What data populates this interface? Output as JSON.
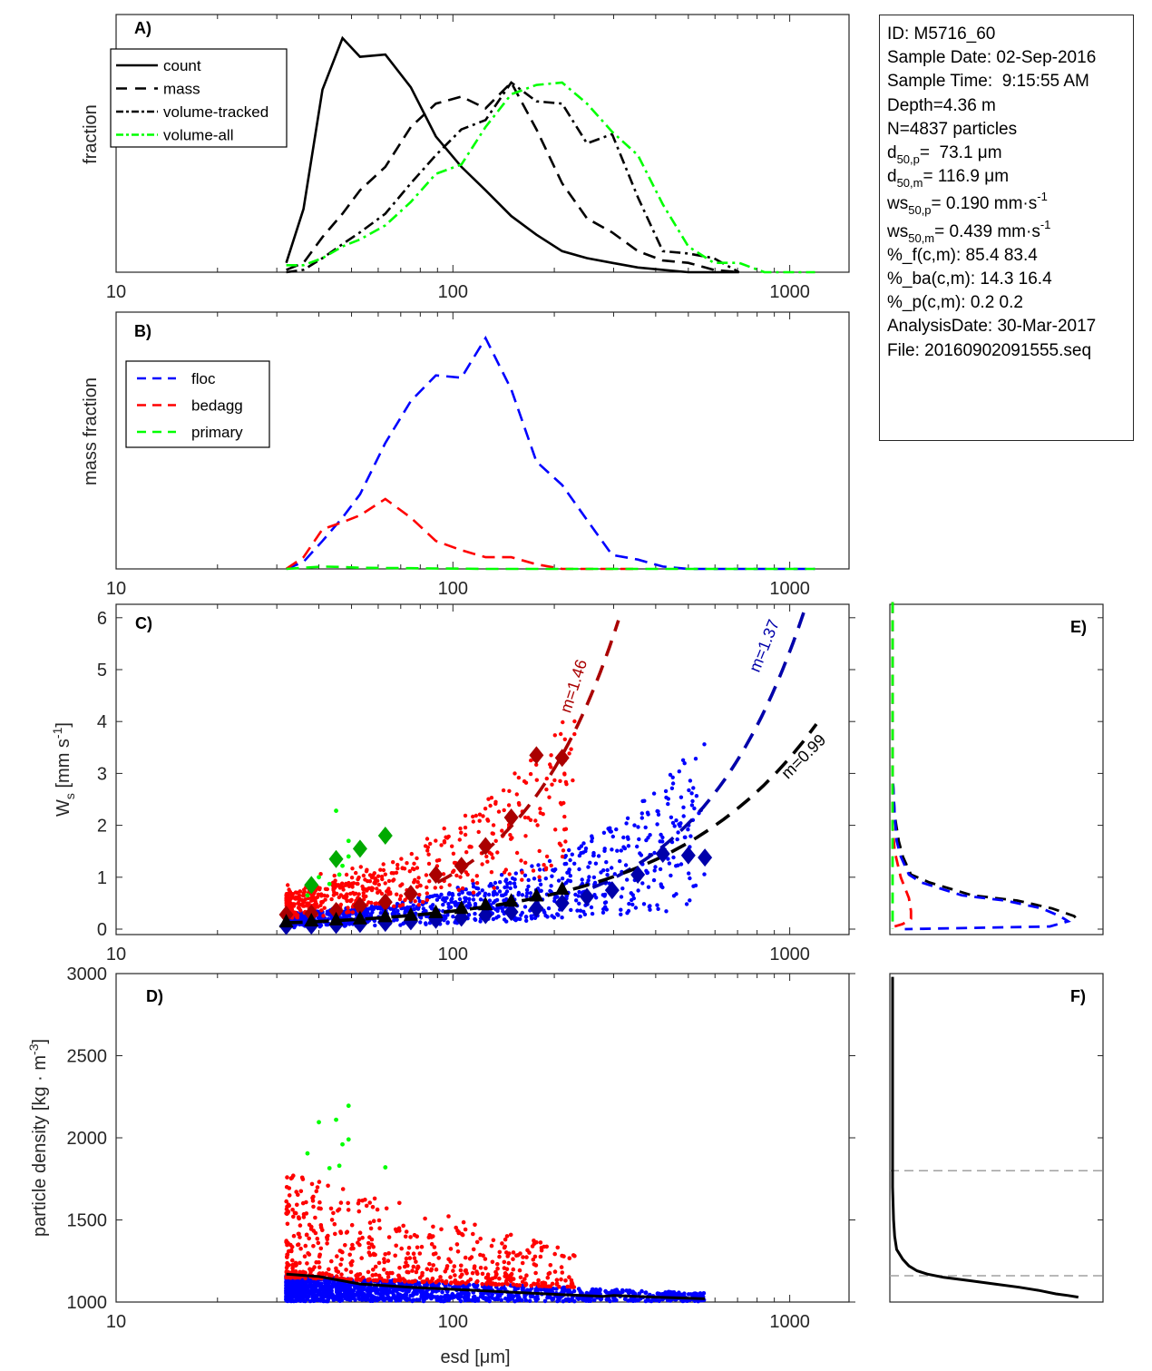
{
  "figure": {
    "info_box": {
      "lines": [
        {
          "text": "ID: M5716_60"
        },
        {
          "text": "Sample Date: 02-Sep-2016"
        },
        {
          "text": "Sample Time:  9:15:55 AM"
        },
        {
          "text": "Depth=4.36 m"
        },
        {
          "text": "N=4837 particles"
        },
        {
          "pre": "d",
          "sub": "50,p",
          "post": "=  73.1 μm"
        },
        {
          "pre": "d",
          "sub": "50,m",
          "post": "= 116.9 μm"
        },
        {
          "pre": "ws",
          "sub": "50,p",
          "post": "= 0.190 mm·s",
          "sup": "-1"
        },
        {
          "pre": "ws",
          "sub": "50,m",
          "post": "= 0.439 mm·s",
          "sup": "-1"
        },
        {
          "text": "%_f(c,m): 85.4 83.4"
        },
        {
          "text": "%_ba(c,m): 14.3 16.4"
        },
        {
          "text": "%_p(c,m): 0.2 0.2"
        },
        {
          "text": "AnalysisDate: 30-Mar-2017"
        },
        {
          "text": "File: 20160902091555.seq"
        }
      ]
    },
    "colors": {
      "black": "#000000",
      "green": "#00ff00",
      "dark_green": "#00aa00",
      "blue": "#0000ff",
      "dark_blue": "#0000aa",
      "red": "#ff0000",
      "dark_red": "#aa0000",
      "gray": "#a0a0a0",
      "axis": "#262626"
    }
  },
  "chart_data": [
    {
      "id": "A",
      "panel_label": "A)",
      "type": "line",
      "xscale": "log",
      "xlim": [
        10,
        1500
      ],
      "xticks": [
        10,
        100,
        1000
      ],
      "xtick_labels": [
        "10",
        "100",
        "1000"
      ],
      "ylabel": "fraction",
      "ylim": [
        0,
        1.0
      ],
      "yticks": [],
      "legend": {
        "placement": "top-left",
        "entries": [
          "count",
          "mass",
          "volume-tracked",
          "volume-all"
        ]
      },
      "series": [
        {
          "name": "count",
          "style": "solid",
          "color": "#000000",
          "x": [
            32,
            36,
            41,
            47,
            53,
            63,
            75,
            89,
            106,
            125,
            149,
            177,
            211,
            250,
            297,
            354,
            420,
            500,
            595,
            707
          ],
          "y": [
            0.04,
            0.27,
            0.78,
            1.0,
            0.92,
            0.93,
            0.79,
            0.58,
            0.45,
            0.35,
            0.24,
            0.16,
            0.09,
            0.06,
            0.04,
            0.02,
            0.01,
            0.0,
            0.0,
            0.0
          ]
        },
        {
          "name": "mass",
          "style": "dashed",
          "color": "#000000",
          "x": [
            32,
            36,
            41,
            47,
            53,
            63,
            75,
            89,
            106,
            125,
            149,
            177,
            211,
            250,
            297,
            354,
            420,
            500,
            595,
            707
          ],
          "y": [
            0.01,
            0.04,
            0.15,
            0.25,
            0.35,
            0.45,
            0.62,
            0.72,
            0.75,
            0.7,
            0.81,
            0.61,
            0.38,
            0.23,
            0.17,
            0.09,
            0.05,
            0.04,
            0.01,
            0.0
          ]
        },
        {
          "name": "volume-tracked",
          "style": "dashdot",
          "color": "#000000",
          "x": [
            32,
            36,
            41,
            47,
            53,
            63,
            75,
            89,
            106,
            125,
            149,
            177,
            211,
            250,
            297,
            354,
            420,
            500,
            595,
            707
          ],
          "y": [
            0.0,
            0.01,
            0.06,
            0.12,
            0.17,
            0.25,
            0.38,
            0.5,
            0.61,
            0.65,
            0.81,
            0.73,
            0.72,
            0.55,
            0.59,
            0.32,
            0.09,
            0.08,
            0.06,
            0.0
          ]
        },
        {
          "name": "volume-all",
          "style": "dashdot",
          "color": "#00ff00",
          "x": [
            32,
            36,
            41,
            47,
            53,
            63,
            75,
            89,
            106,
            125,
            149,
            177,
            211,
            250,
            297,
            354,
            420,
            500,
            595,
            707,
            841,
            1000,
            1189
          ],
          "y": [
            0.03,
            0.03,
            0.06,
            0.11,
            0.14,
            0.2,
            0.3,
            0.42,
            0.46,
            0.62,
            0.76,
            0.8,
            0.81,
            0.72,
            0.6,
            0.5,
            0.29,
            0.11,
            0.04,
            0.04,
            0.0,
            0.0,
            0.0
          ]
        }
      ]
    },
    {
      "id": "B",
      "panel_label": "B)",
      "type": "line",
      "xscale": "log",
      "xlim": [
        10,
        1500
      ],
      "xticks": [
        10,
        100,
        1000
      ],
      "xtick_labels": [
        "10",
        "100",
        "1000"
      ],
      "ylabel": "mass fraction",
      "ylim": [
        0,
        1.0
      ],
      "yticks": [],
      "legend": {
        "placement": "top-left",
        "entries": [
          "floc",
          "bedagg",
          "primary"
        ]
      },
      "series": [
        {
          "name": "floc",
          "style": "dashed",
          "color": "#0000ff",
          "x": [
            32,
            36,
            41,
            47,
            53,
            63,
            75,
            89,
            106,
            125,
            149,
            177,
            211,
            250,
            297,
            354,
            420,
            500,
            595,
            707,
            841,
            1000,
            1189
          ],
          "y": [
            0.0,
            0.03,
            0.12,
            0.22,
            0.32,
            0.54,
            0.72,
            0.83,
            0.82,
            0.99,
            0.77,
            0.46,
            0.36,
            0.21,
            0.06,
            0.04,
            0.01,
            0.0,
            0.0,
            0.0,
            0.0,
            0.0,
            0.0
          ]
        },
        {
          "name": "bedagg",
          "style": "dashed",
          "color": "#ff0000",
          "x": [
            32,
            36,
            41,
            47,
            53,
            63,
            75,
            89,
            106,
            125,
            149,
            177,
            211,
            250,
            297,
            354
          ],
          "y": [
            0.0,
            0.05,
            0.17,
            0.2,
            0.23,
            0.3,
            0.22,
            0.12,
            0.08,
            0.05,
            0.05,
            0.02,
            0.0,
            0.0,
            0.0,
            0.0
          ]
        },
        {
          "name": "primary",
          "style": "dashed",
          "color": "#00ff00",
          "x": [
            32,
            36,
            41,
            47,
            53,
            63,
            75,
            89,
            106,
            125,
            149,
            177,
            211,
            250,
            297,
            354,
            420,
            500,
            595,
            707,
            841,
            1000,
            1189
          ],
          "y": [
            0.0,
            0.005,
            0.01,
            0.008,
            0.005,
            0.004,
            0.003,
            0.002,
            0.001,
            0.0,
            0.0,
            0.0,
            0.0,
            0.0,
            0.0,
            0.0,
            0.0,
            0.0,
            0.0,
            0.0,
            0.0,
            0.0,
            0.0
          ]
        }
      ]
    },
    {
      "id": "C",
      "panel_label": "C)",
      "type": "scatter",
      "xscale": "log",
      "xlim": [
        10,
        1500
      ],
      "xticks": [
        10,
        100,
        1000
      ],
      "xtick_labels": [
        "10",
        "100",
        "1000"
      ],
      "ylabel": "W_s [mm s^-1]",
      "ylim": [
        -0.1,
        6.3
      ],
      "yticks": [
        0,
        1,
        2,
        3,
        4,
        5,
        6
      ],
      "ytick_labels": [
        "0",
        "1",
        "2",
        "3",
        "4",
        "5",
        "6"
      ],
      "scatter_groups": [
        {
          "name": "floc",
          "color": "#0000ff",
          "n_points_approx": 4030,
          "x_range": [
            32,
            560
          ],
          "y_range": [
            0.0,
            2.5
          ]
        },
        {
          "name": "bedagg",
          "color": "#ff0000",
          "n_points_approx": 790,
          "x_range": [
            32,
            230
          ],
          "y_range": [
            0.1,
            3.5
          ]
        },
        {
          "name": "primary",
          "color": "#00ff00",
          "n_points_approx": 10,
          "x_range": [
            36,
            64
          ],
          "y_range": [
            0.6,
            2.3
          ]
        }
      ],
      "medians": [
        {
          "name": "floc-median",
          "color": "#0000aa",
          "marker": "diamond",
          "x": [
            32,
            38,
            45,
            53,
            63,
            75,
            89,
            106,
            125,
            149,
            177,
            211,
            250,
            297,
            354,
            420,
            500,
            560
          ],
          "y": [
            0.06,
            0.07,
            0.08,
            0.1,
            0.12,
            0.15,
            0.18,
            0.22,
            0.27,
            0.33,
            0.4,
            0.5,
            0.62,
            0.75,
            1.05,
            1.45,
            1.42,
            1.38
          ]
        },
        {
          "name": "bedagg-median",
          "color": "#aa0000",
          "marker": "diamond",
          "x": [
            32,
            38,
            45,
            53,
            63,
            75,
            89,
            106,
            125,
            149,
            177,
            211
          ],
          "y": [
            0.28,
            0.3,
            0.35,
            0.45,
            0.52,
            0.68,
            1.05,
            1.22,
            1.6,
            2.15,
            3.35,
            3.3
          ]
        },
        {
          "name": "primary-median",
          "color": "#00aa00",
          "marker": "diamond",
          "x": [
            38,
            45,
            53,
            63
          ],
          "y": [
            0.85,
            1.35,
            1.55,
            1.8
          ]
        },
        {
          "name": "all-median",
          "color": "#000000",
          "marker": "triangle",
          "x": [
            32,
            38,
            45,
            53,
            63,
            75,
            89,
            106,
            125,
            149,
            177,
            211
          ],
          "y": [
            0.12,
            0.14,
            0.16,
            0.18,
            0.22,
            0.25,
            0.3,
            0.38,
            0.45,
            0.52,
            0.62,
            0.75
          ]
        }
      ],
      "fits": [
        {
          "name": "bedagg-fit",
          "label": "m=1.46",
          "color": "#aa0000",
          "style": "dashed",
          "x_range": [
            90,
            310
          ],
          "exponent": 1.46,
          "y_at_start": 0.9,
          "y_at_end": 5.95
        },
        {
          "name": "floc-fit",
          "label": "m=1.37",
          "color": "#0000aa",
          "style": "dashed",
          "x_range": [
            260,
            1100
          ],
          "exponent": 1.37,
          "y_at_start": 0.8,
          "y_at_end": 6.1
        },
        {
          "name": "all-fit",
          "label": "m=0.99",
          "color": "#000000",
          "style": "dashed",
          "x_range": [
            32,
            1200
          ],
          "exponent": 0.99,
          "y_at_start": 0.12,
          "y_at_end": 3.95
        }
      ]
    },
    {
      "id": "D",
      "panel_label": "D)",
      "type": "scatter",
      "xscale": "log",
      "xlim": [
        10,
        1500
      ],
      "xticks": [
        10,
        100,
        1000
      ],
      "xtick_labels": [
        "10",
        "100",
        "1000"
      ],
      "xlabel": "esd [μm]",
      "ylabel": "particle density [kg · m^-3]",
      "ylim": [
        1000,
        3000
      ],
      "yticks": [
        1000,
        1500,
        2000,
        2500,
        3000
      ],
      "ytick_labels": [
        "1000",
        "1500",
        "2000",
        "2500",
        "3000"
      ],
      "scatter_groups": [
        {
          "name": "floc",
          "color": "#0000ff",
          "n_points_approx": 4030,
          "x_range": [
            32,
            560
          ],
          "y_range": [
            1000,
            1160
          ]
        },
        {
          "name": "bedagg",
          "color": "#ff0000",
          "n_points_approx": 790,
          "x_range": [
            32,
            230
          ],
          "y_range": [
            1150,
            1800
          ]
        },
        {
          "name": "primary",
          "color": "#00ff00",
          "n_points_approx": 10,
          "points": [
            [
              37,
              1905
            ],
            [
              40,
              2095
            ],
            [
              43,
              1815
            ],
            [
              45,
              2110
            ],
            [
              46,
              1830
            ],
            [
              47,
              1960
            ],
            [
              49,
              1990
            ],
            [
              49,
              2195
            ],
            [
              63,
              1820
            ]
          ]
        }
      ],
      "median_line": {
        "name": "density-median",
        "color": "#000000",
        "x": [
          32,
          40,
          53,
          75,
          106,
          149,
          211,
          280,
          300,
          400,
          560
        ],
        "y": [
          1170,
          1155,
          1110,
          1090,
          1075,
          1060,
          1045,
          1035,
          1040,
          1030,
          1020
        ]
      }
    },
    {
      "id": "E",
      "panel_label": "E)",
      "type": "line",
      "orientation": "horizontal-distribution",
      "ylim": [
        -0.1,
        6.3
      ],
      "yticks": [
        0,
        1,
        2,
        3,
        4,
        5,
        6
      ],
      "xlim": [
        0,
        1.0
      ],
      "series": [
        {
          "name": "all",
          "color": "#000000",
          "style": "dashed",
          "y": [
            6.3,
            3.0,
            2.2,
            1.7,
            1.4,
            1.05,
            0.9,
            0.65,
            0.55,
            0.4,
            0.25,
            0.15
          ],
          "x": [
            0.0,
            0.0,
            0.01,
            0.03,
            0.05,
            0.09,
            0.18,
            0.39,
            0.61,
            0.78,
            0.89,
            0.91
          ]
        },
        {
          "name": "floc",
          "color": "#0000ff",
          "style": "dashed",
          "y": [
            6.3,
            3.0,
            2.2,
            1.7,
            1.4,
            1.05,
            0.9,
            0.65,
            0.55,
            0.4,
            0.25,
            0.15,
            0.05,
            0.0
          ],
          "x": [
            0.0,
            0.0,
            0.01,
            0.02,
            0.04,
            0.08,
            0.14,
            0.34,
            0.55,
            0.73,
            0.82,
            0.86,
            0.77,
            0.06
          ]
        },
        {
          "name": "bedagg",
          "color": "#ff0000",
          "style": "dashed",
          "y": [
            6.3,
            3.0,
            2.0,
            1.5,
            1.0,
            0.6,
            0.35,
            0.2,
            0.1,
            0.05
          ],
          "x": [
            0.0,
            0.0,
            0.0,
            0.01,
            0.04,
            0.08,
            0.09,
            0.09,
            0.05,
            0.01
          ]
        },
        {
          "name": "primary",
          "color": "#00ff00",
          "style": "dashed",
          "y": [
            6.3,
            0.0
          ],
          "x": [
            0.0,
            0.0
          ]
        }
      ]
    },
    {
      "id": "F",
      "panel_label": "F)",
      "type": "line",
      "orientation": "horizontal-distribution",
      "ylim": [
        1000,
        3000
      ],
      "yticks": [
        1000,
        1500,
        2000,
        2500,
        3000
      ],
      "xlim": [
        0,
        1.0
      ],
      "reference_lines": [
        {
          "y": 1800,
          "color": "#a0a0a0",
          "style": "dashed"
        },
        {
          "y": 1160,
          "color": "#a0a0a0",
          "style": "dashed"
        }
      ],
      "series": [
        {
          "name": "density-cdf",
          "color": "#000000",
          "style": "solid",
          "y": [
            2980,
            2500,
            2000,
            1700,
            1500,
            1400,
            1320,
            1260,
            1220,
            1190,
            1170,
            1150,
            1130,
            1110,
            1090,
            1070,
            1050,
            1040,
            1030
          ],
          "x": [
            0.0,
            0.0,
            0.0,
            0.0,
            0.005,
            0.01,
            0.02,
            0.05,
            0.08,
            0.12,
            0.17,
            0.25,
            0.38,
            0.5,
            0.62,
            0.72,
            0.8,
            0.86,
            0.91
          ]
        }
      ]
    }
  ]
}
